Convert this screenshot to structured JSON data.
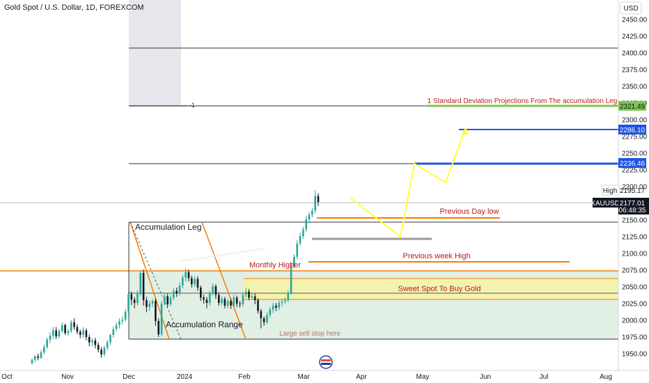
{
  "header": {
    "title": "Gold Spot / U.S. Dollar, 1D, FOREXCOM"
  },
  "axis": {
    "currency": "USD",
    "high_label": "High",
    "high_value": "2195.17"
  },
  "symbol": {
    "ticker": "XAUUSD",
    "price": "2177.01",
    "countdown": "06:48:35"
  },
  "annotations": {
    "std_dev": "1 Standard Deviation Projections From The accumulation Leg",
    "prev_day_low": "Previous Day low",
    "prev_week_high": "Previous week High",
    "sweet_spot": "Sweet Spot To Buy Gold",
    "monthly_higher": "Monthly Higher",
    "accum_leg": "Accumulation Leg",
    "accum_range": "Accumulation Range",
    "sell_stop": "Large sell stop here",
    "ruler_marker": "-1"
  },
  "levels": {
    "green": "2321.49",
    "blue_upper": "2286.10",
    "blue_lower": "2236.46"
  },
  "colors": {
    "up": "#26a69a",
    "down": "#131722",
    "orange": "#f57c00",
    "blue": "#1e53e5",
    "green": "#7cc550",
    "yellow": "#ffff6a",
    "red_text": "#b71c1c"
  },
  "chart_data": {
    "type": "candlestick",
    "symbol": "XAUUSD",
    "y_ticks": [
      2450,
      2425,
      2400,
      2375,
      2350,
      2325,
      2300,
      2275,
      2250,
      2225,
      2200,
      2175,
      2150,
      2125,
      2100,
      2075,
      2050,
      2025,
      2000,
      1975,
      1950
    ],
    "y_tick_labels": [
      "2450.00",
      "2425.00",
      "2400.00",
      "2375.00",
      "2350.00",
      "2325.00",
      "2300.00",
      "2275.00",
      "2250.00",
      "2225.00",
      "2200.00",
      "2175.00",
      "2150.00",
      "2125.00",
      "2100.00",
      "2075.00",
      "2050.00",
      "2025.00",
      "2000.00",
      "1975.00",
      "1950.00"
    ],
    "ylim": [
      1937,
      2466
    ],
    "x_labels": [
      "Oct",
      "Nov",
      "Dec",
      "2024",
      "Feb",
      "Mar",
      "Apr",
      "May",
      "Jun",
      "Jul",
      "Aug"
    ],
    "candles": [
      [
        1936,
        1941,
        1934,
        1943
      ],
      [
        1941,
        1946,
        1937,
        1948
      ],
      [
        1946,
        1944,
        1940,
        1950
      ],
      [
        1944,
        1952,
        1942,
        1956
      ],
      [
        1952,
        1960,
        1949,
        1964
      ],
      [
        1960,
        1971,
        1957,
        1974
      ],
      [
        1971,
        1977,
        1966,
        1982
      ],
      [
        1977,
        1985,
        1972,
        1990
      ],
      [
        1985,
        1976,
        1972,
        1990
      ],
      [
        1976,
        1984,
        1973,
        1987
      ],
      [
        1984,
        1993,
        1981,
        1997
      ],
      [
        1993,
        1981,
        1978,
        1995
      ],
      [
        1981,
        1984,
        1977,
        1987
      ],
      [
        1984,
        1997,
        1981,
        2000
      ],
      [
        1997,
        1990,
        1986,
        2003
      ],
      [
        1990,
        1983,
        1979,
        1994
      ],
      [
        1983,
        1978,
        1973,
        1986
      ],
      [
        1978,
        1985,
        1974,
        1990
      ],
      [
        1985,
        1975,
        1970,
        1988
      ],
      [
        1975,
        1967,
        1961,
        1979
      ],
      [
        1967,
        1970,
        1961,
        1973
      ],
      [
        1970,
        1963,
        1958,
        1974
      ],
      [
        1963,
        1956,
        1952,
        1967
      ],
      [
        1956,
        1949,
        1944,
        1960
      ],
      [
        1949,
        1959,
        1946,
        1962
      ],
      [
        1959,
        1967,
        1955,
        1971
      ],
      [
        1967,
        1978,
        1963,
        1980
      ],
      [
        1978,
        1987,
        1974,
        1991
      ],
      [
        1987,
        1993,
        1983,
        1997
      ],
      [
        1993,
        1999,
        1988,
        2003
      ],
      [
        1999,
        2001,
        1994,
        2006
      ],
      [
        2001,
        2013,
        1998,
        2017
      ],
      [
        2013,
        2039,
        2010,
        2044
      ],
      [
        2039,
        2031,
        2023,
        2043
      ],
      [
        2031,
        2026,
        2018,
        2035
      ],
      [
        2026,
        2041,
        2022,
        2045
      ],
      [
        2041,
        2071,
        2036,
        2074
      ],
      [
        2071,
        2030,
        2022,
        2076
      ],
      [
        2030,
        2020,
        2012,
        2035
      ],
      [
        2020,
        2025,
        2014,
        2029
      ],
      [
        2025,
        2029,
        2020,
        2032
      ],
      [
        2029,
        1999,
        1992,
        2033
      ],
      [
        1999,
        1979,
        1975,
        2003
      ],
      [
        1979,
        2025,
        1976,
        2029
      ],
      [
        2025,
        2036,
        2022,
        2040
      ],
      [
        2036,
        2024,
        2020,
        2040
      ],
      [
        2024,
        2034,
        2021,
        2038
      ],
      [
        2034,
        2044,
        2030,
        2048
      ],
      [
        2044,
        2040,
        2035,
        2049
      ],
      [
        2040,
        2052,
        2037,
        2057
      ],
      [
        2052,
        2064,
        2048,
        2068
      ],
      [
        2064,
        2072,
        2058,
        2078
      ],
      [
        2072,
        2063,
        2058,
        2076
      ],
      [
        2063,
        2054,
        2049,
        2067
      ],
      [
        2054,
        2062,
        2050,
        2066
      ],
      [
        2062,
        2049,
        2044,
        2066
      ],
      [
        2049,
        2034,
        2029,
        2052
      ],
      [
        2034,
        2031,
        2025,
        2038
      ],
      [
        2031,
        2026,
        2018,
        2035
      ],
      [
        2026,
        2041,
        2022,
        2044
      ],
      [
        2041,
        2051,
        2037,
        2055
      ],
      [
        2051,
        2038,
        2032,
        2054
      ],
      [
        2038,
        2026,
        2022,
        2042
      ],
      [
        2026,
        2032,
        2022,
        2036
      ],
      [
        2032,
        2022,
        2018,
        2035
      ],
      [
        2022,
        2029,
        2018,
        2032
      ],
      [
        2029,
        2022,
        2017,
        2033
      ],
      [
        2022,
        2034,
        2019,
        2038
      ],
      [
        2034,
        2025,
        2020,
        2037
      ],
      [
        2025,
        2024,
        2019,
        2029
      ],
      [
        2024,
        2038,
        2020,
        2042
      ],
      [
        2038,
        2043,
        2034,
        2048
      ],
      [
        2043,
        2034,
        2030,
        2047
      ],
      [
        2034,
        2036,
        2031,
        2040
      ],
      [
        2036,
        2030,
        2024,
        2040
      ],
      [
        2030,
        2014,
        2010,
        2033
      ],
      [
        2014,
        2003,
        1988,
        2017
      ],
      [
        2003,
        1997,
        1992,
        2006
      ],
      [
        1997,
        2008,
        1994,
        2012
      ],
      [
        2008,
        2016,
        2004,
        2020
      ],
      [
        2016,
        2022,
        2011,
        2026
      ],
      [
        2022,
        2019,
        2014,
        2026
      ],
      [
        2019,
        2026,
        2015,
        2030
      ],
      [
        2026,
        2028,
        2021,
        2032
      ],
      [
        2028,
        2030,
        2024,
        2034
      ],
      [
        2030,
        2041,
        2027,
        2045
      ],
      [
        2041,
        2082,
        2038,
        2086
      ],
      [
        2082,
        2095,
        2078,
        2099
      ],
      [
        2095,
        2115,
        2091,
        2120
      ],
      [
        2115,
        2126,
        2111,
        2131
      ],
      [
        2126,
        2136,
        2122,
        2140
      ],
      [
        2136,
        2151,
        2132,
        2156
      ],
      [
        2151,
        2158,
        2146,
        2162
      ],
      [
        2158,
        2164,
        2154,
        2168
      ],
      [
        2164,
        2186,
        2160,
        2195
      ],
      [
        2186,
        2177,
        2171,
        2190
      ]
    ]
  }
}
